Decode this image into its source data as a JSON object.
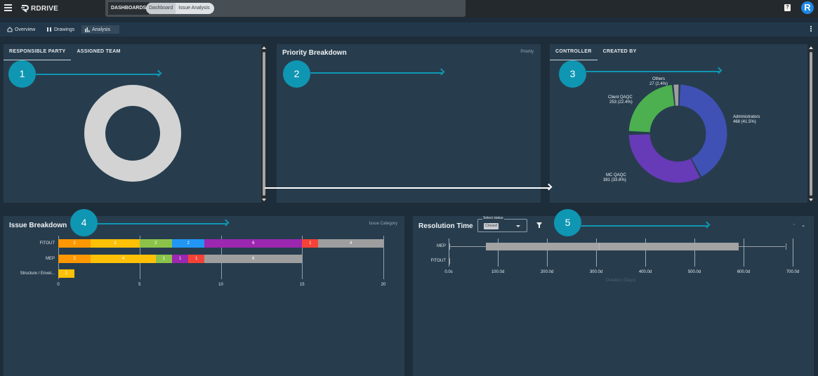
{
  "topbar": {
    "logo_text": "RDRIVE",
    "dashboards_label": "DASHBOARDS",
    "breadcrumb": [
      "Dashboard",
      "Issue Analysis"
    ],
    "help_icon": "help-icon",
    "avatar_letter": "R"
  },
  "subnav": {
    "items": [
      {
        "label": "Overview",
        "icon": "home-icon"
      },
      {
        "label": "Drawings",
        "icon": "drawings-icon"
      },
      {
        "label": "Analysis",
        "icon": "bar-chart-icon",
        "active": true
      }
    ]
  },
  "panels": {
    "responsible": {
      "tabs": [
        "RESPONSIBLE PARTY",
        "ASSIGNED TEAM"
      ],
      "active_tab": 0,
      "donut_color": "#d3d3d3"
    },
    "priority": {
      "title": "Priority Breakdown",
      "legend": "Priority"
    },
    "controller": {
      "tabs": [
        "CONTROLLER",
        "CREATED BY"
      ],
      "active_tab": 0
    },
    "issue_breakdown": {
      "title": "Issue Breakdown",
      "legend": "Issue Category"
    },
    "resolution": {
      "title": "Resolution Time",
      "select_label": "Select status",
      "select_value": "Closed",
      "x_axis_label": "Duration (Days)"
    }
  },
  "annotations": {
    "badges": [
      "1",
      "2",
      "3",
      "4",
      "5"
    ],
    "badge_color": "#0f96b2"
  },
  "chart_data": [
    {
      "type": "pie",
      "title": "Controller",
      "donut": true,
      "labels": [
        "Administrators",
        "MC QAQC",
        "Client QAQC",
        "Others"
      ],
      "values": [
        468,
        381,
        253,
        27
      ],
      "percentages": [
        "41.5%",
        "33.8%",
        "22.4%",
        "2.4%"
      ],
      "display_labels": [
        "468 (41.5%)",
        "381 (33.8%)",
        "253 (22.4%)",
        "27 (2.4%)"
      ],
      "colors": [
        "#3f51b5",
        "#673ab7",
        "#4caf50",
        "#9e9e9e"
      ]
    },
    {
      "type": "bar",
      "orientation": "horizontal",
      "stacked": true,
      "title": "Issue Breakdown",
      "legend_title": "Issue Category",
      "categories": [
        "FITOUT",
        "MEP",
        "Structure / Envel..."
      ],
      "xlim": [
        0,
        20
      ],
      "xticks": [
        0,
        5,
        10,
        15,
        20
      ],
      "series": [
        {
          "name": "orange",
          "color": "#ff9800",
          "values": [
            2,
            2,
            0
          ]
        },
        {
          "name": "yellow",
          "color": "#ffc107",
          "values": [
            3,
            4,
            1
          ]
        },
        {
          "name": "green",
          "color": "#8bc34a",
          "values": [
            2,
            1,
            0
          ]
        },
        {
          "name": "blue",
          "color": "#2196f3",
          "values": [
            2,
            0,
            0
          ]
        },
        {
          "name": "purple",
          "color": "#9c27b0",
          "values": [
            6,
            1,
            0
          ]
        },
        {
          "name": "red",
          "color": "#f44336",
          "values": [
            1,
            1,
            0
          ]
        },
        {
          "name": "grey",
          "color": "#9e9e9e",
          "values": [
            4,
            6,
            0
          ]
        }
      ]
    },
    {
      "type": "box",
      "title": "Resolution Time",
      "orientation": "horizontal",
      "categories": [
        "MEP",
        "FITOUT"
      ],
      "xlabel": "Duration (Days)",
      "xticks": [
        "0.0s",
        "100.0d",
        "200.0d",
        "300.0d",
        "400.0d",
        "500.0d",
        "600.0d",
        "700.0d"
      ],
      "xlim": [
        0,
        700
      ],
      "boxes": [
        {
          "category": "MEP",
          "min": 2,
          "q1": 75,
          "median": 305,
          "q3": 590,
          "max": 685
        },
        {
          "category": "FITOUT",
          "min": 0,
          "q1": 0,
          "median": 1,
          "q3": 3,
          "max": 3
        }
      ]
    }
  ]
}
